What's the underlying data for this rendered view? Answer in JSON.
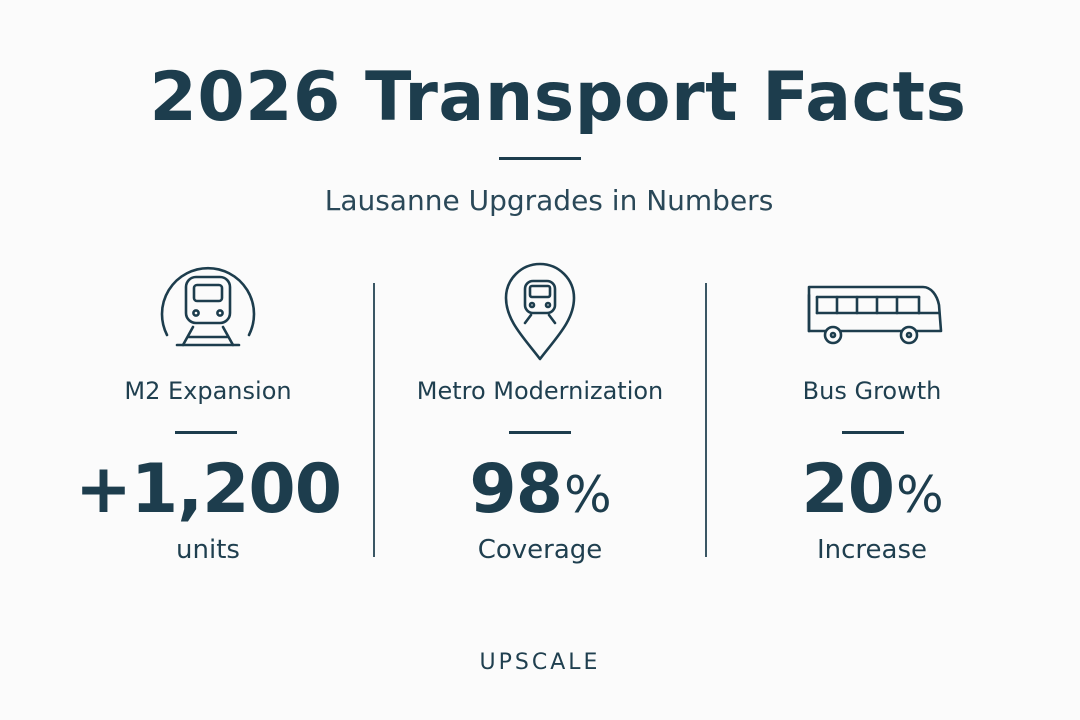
{
  "header": {
    "title": "2026 Transport Facts",
    "subtitle": "Lausanne Upgrades in Numbers"
  },
  "stats": [
    {
      "icon": "metro-tunnel-icon",
      "label": "M2 Expansion",
      "value": "+1,200",
      "caption": "units"
    },
    {
      "icon": "metro-location-pin-icon",
      "label": "Metro Modernization",
      "value": "98",
      "unit": "%",
      "caption": "Coverage"
    },
    {
      "icon": "bus-icon",
      "label": "Bus Growth",
      "value": "20",
      "unit": "%",
      "caption": "Increase"
    }
  ],
  "footer": {
    "brand": "UPSCALE"
  },
  "colors": {
    "primary": "#1d3d4d",
    "background": "#fbfbfb"
  }
}
